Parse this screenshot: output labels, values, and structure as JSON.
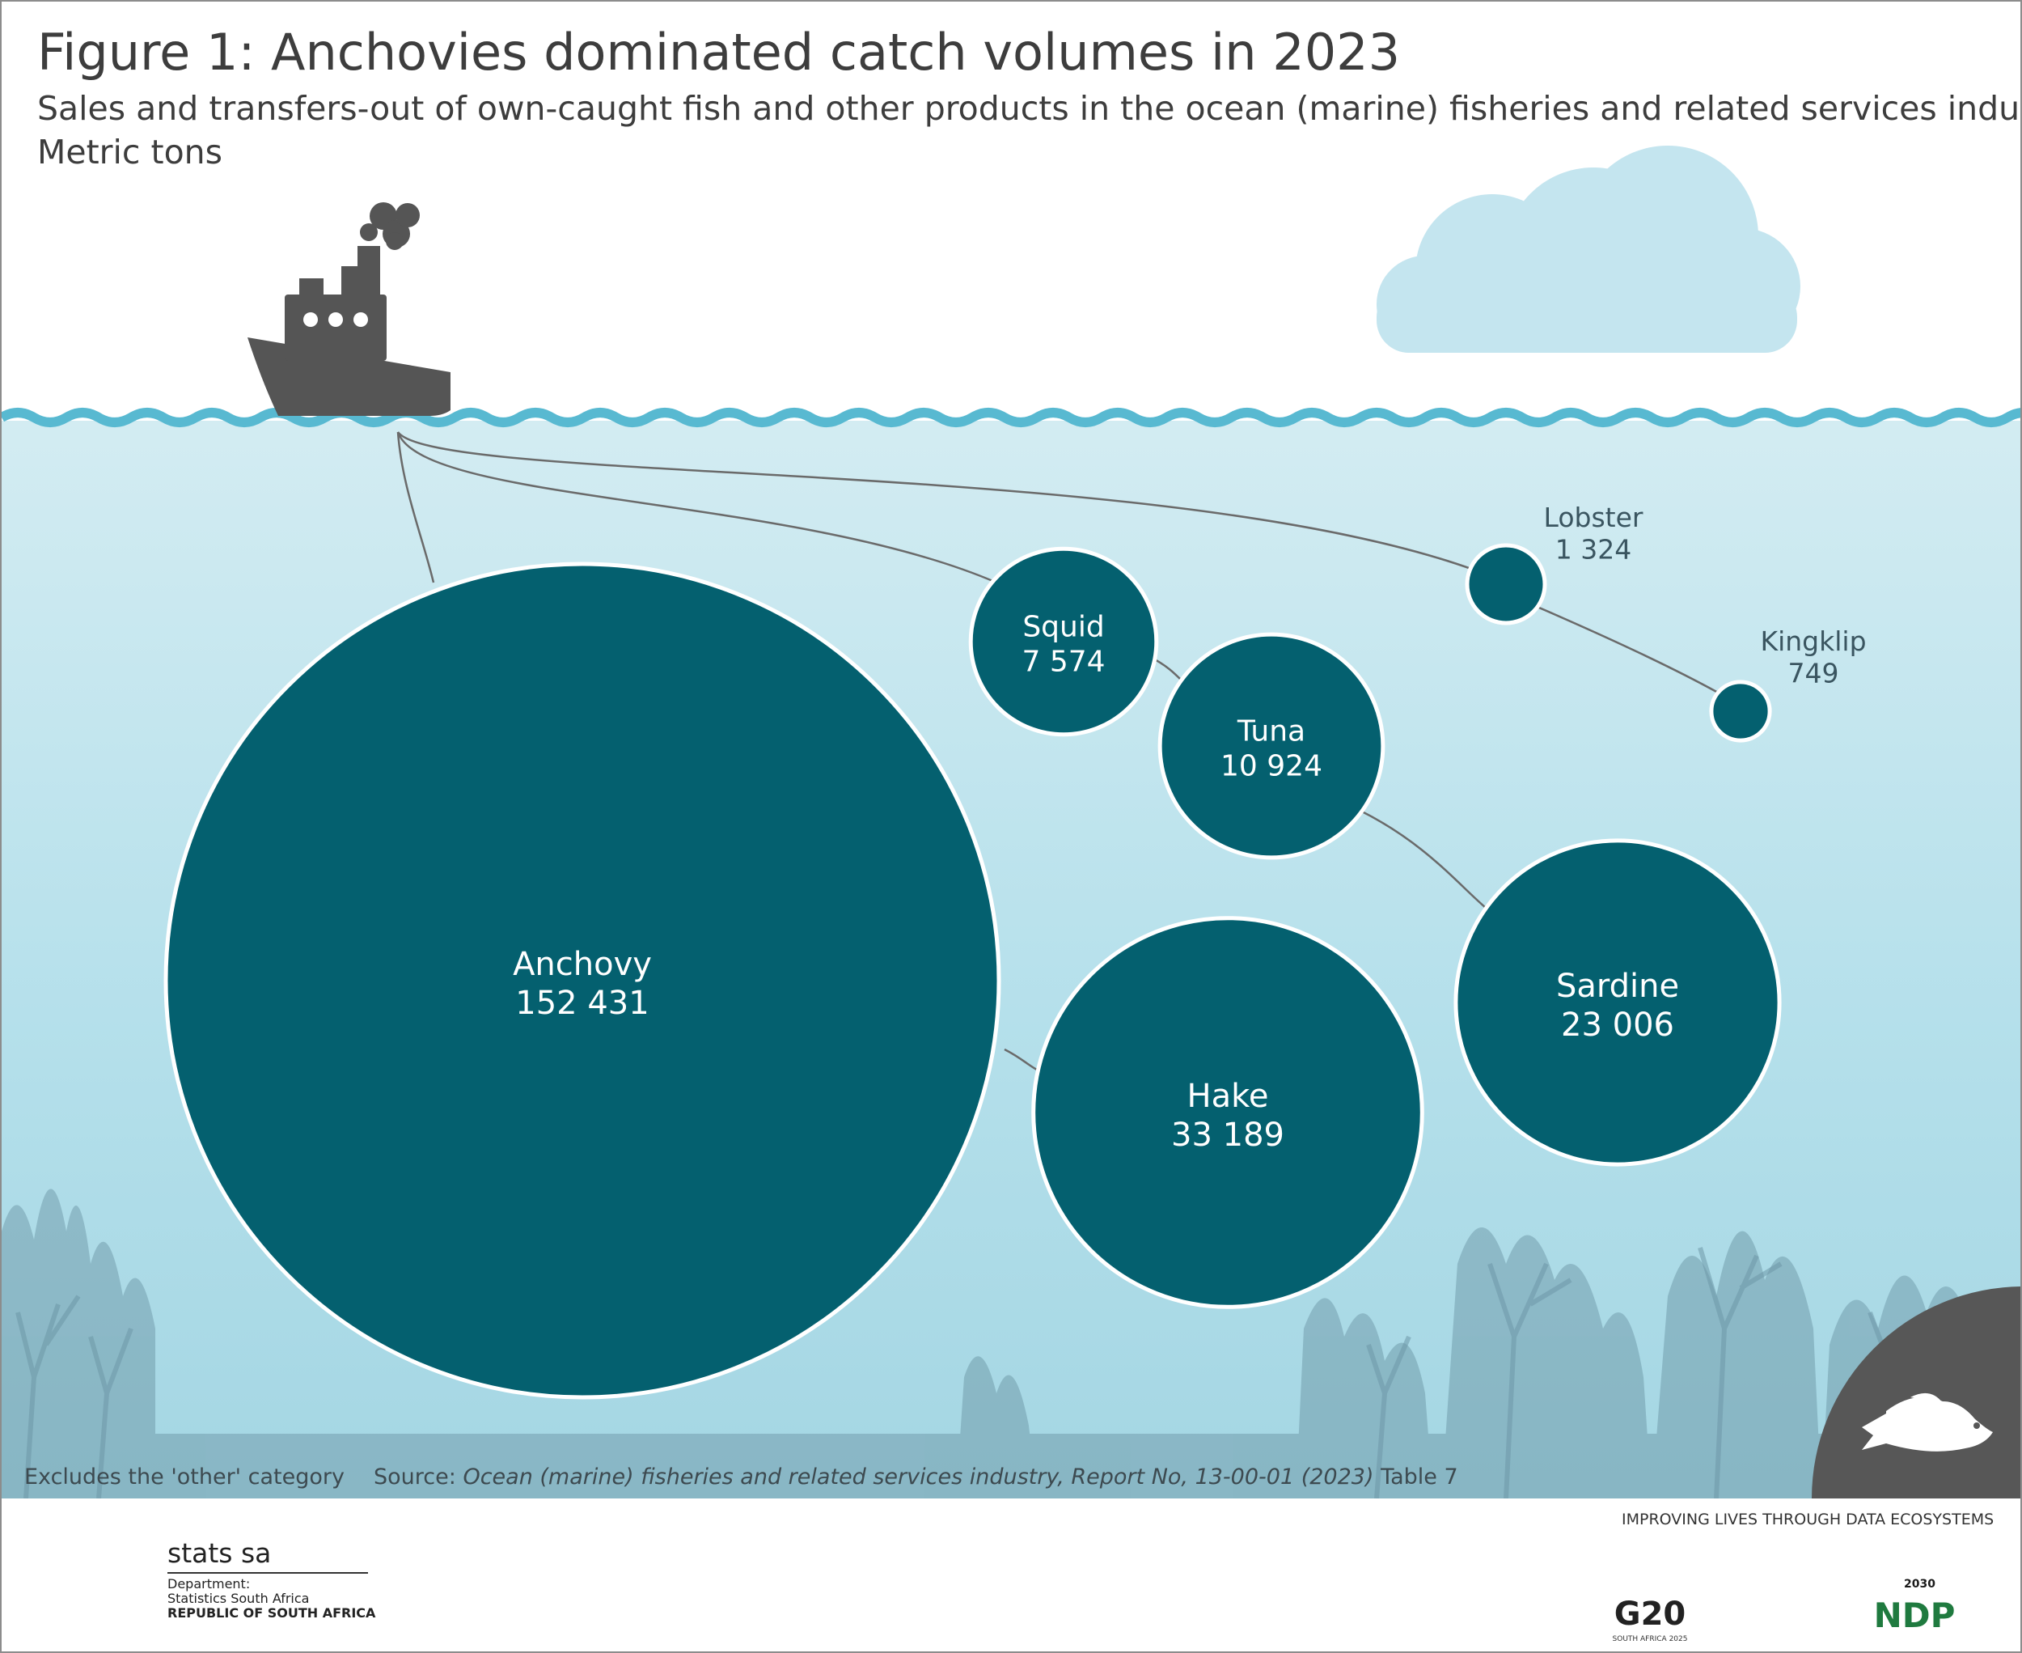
{
  "header": {
    "title": "Figure 1: Anchovies dominated catch volumes in 2023",
    "subtitle": "Sales and transfers-out of own-caught fish and other products in the ocean (marine) fisheries and related services industry",
    "units": "Metric tons"
  },
  "chart_data": {
    "type": "bubble",
    "title": "Figure 1: Anchovies dominated catch volumes in 2023",
    "subtitle": "Sales and transfers-out of own-caught fish and other products in the ocean (marine) fisheries and related services industry",
    "unit": "Metric tons",
    "legend": "none",
    "grid": false,
    "bubble_color": "#04606f",
    "categories": [
      "Anchovy",
      "Hake",
      "Sardine",
      "Tuna",
      "Squid",
      "Lobster",
      "Kingklip"
    ],
    "values": [
      152431,
      33189,
      23006,
      10924,
      7574,
      1324,
      749
    ],
    "value_labels": [
      "152 431",
      "33 189",
      "23 006",
      "10 924",
      "7 574",
      "1 324",
      "749"
    ]
  },
  "notes": {
    "exclusion": "Excludes the 'other' category",
    "source_label": "Source:",
    "source_text": "Ocean (marine) fisheries and related services industry, Report No, 13-00-01 (2023)",
    "table_ref": "Table 7"
  },
  "footer": {
    "brand": "stats sa",
    "department_line1": "Department:",
    "department_line2": "Statistics South Africa",
    "department_line3": "REPUBLIC OF SOUTH AFRICA",
    "tagline": "IMPROVING LIVES THROUGH DATA ECOSYSTEMS",
    "g20_label": "G20",
    "g20_sub": "SOUTH AFRICA 2025",
    "ndp_label": "NDP",
    "ndp_year": "2030"
  },
  "icons": {
    "boat": "boat-icon",
    "cloud": "cloud-icon",
    "fish": "fish-icon",
    "coat_of_arms": "coat-of-arms-icon",
    "g20_logo": "g20-logo-icon",
    "ndp_logo": "ndp-logo-icon"
  },
  "colors": {
    "bubble": "#04606f",
    "water_top": "#cfeaf1",
    "water_bottom": "#a7d9e6",
    "wave": "#58b9d1",
    "boat": "#555555",
    "cloud": "#c4e5ef",
    "seabed": "#6f99a8",
    "fish_badge": "#575757"
  }
}
